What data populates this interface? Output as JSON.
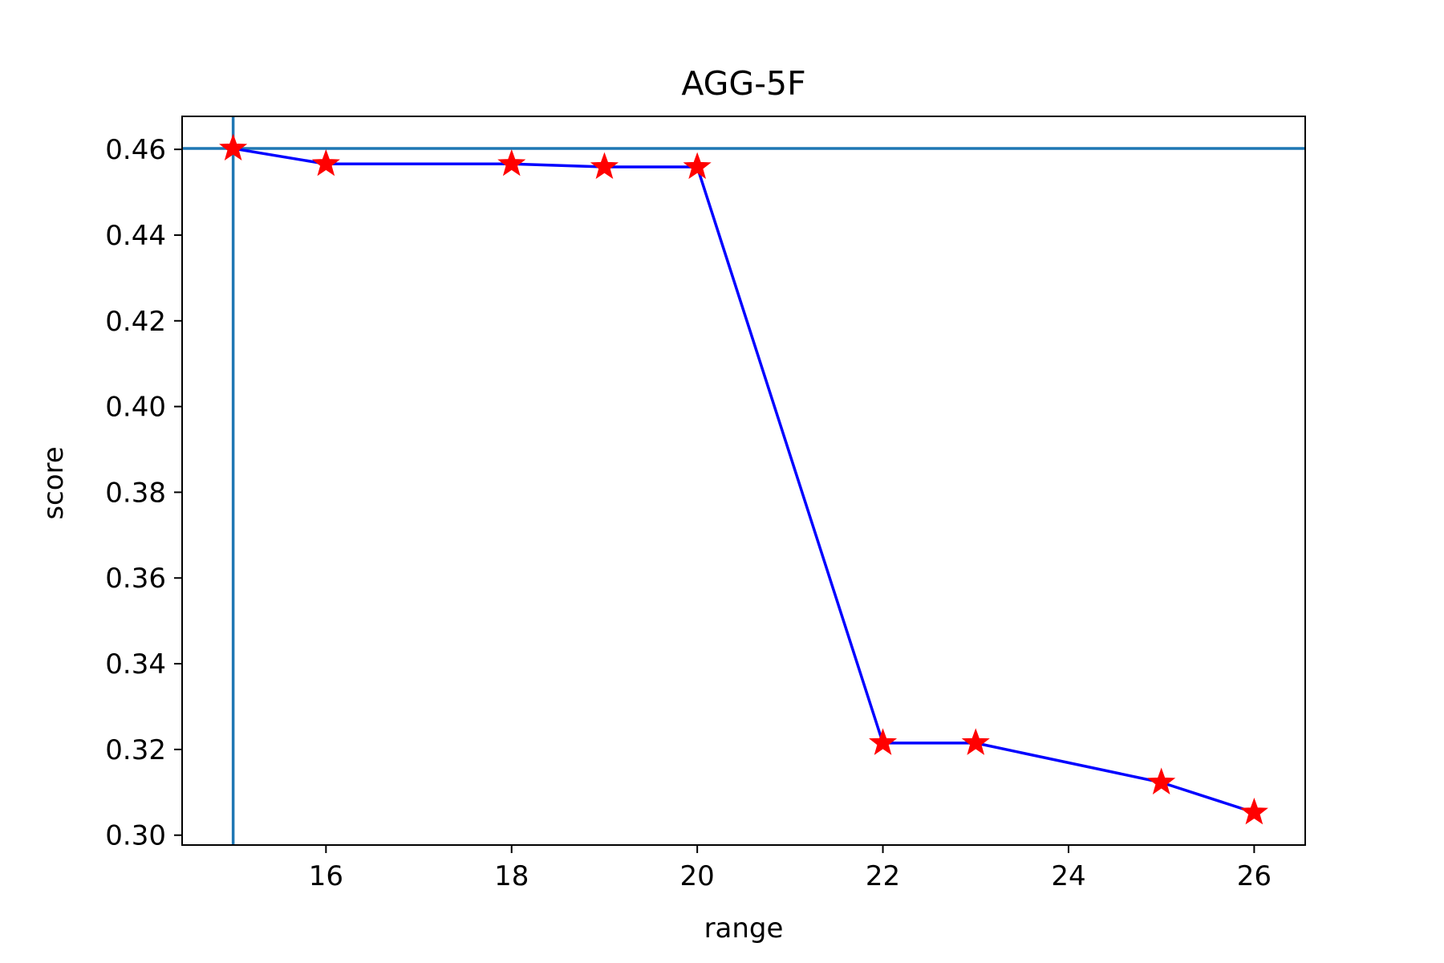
{
  "chart_data": {
    "type": "line",
    "title": "AGG-5F",
    "xlabel": "range",
    "ylabel": "score",
    "xlim": [
      14.45,
      26.55
    ],
    "ylim": [
      0.2977,
      0.4677
    ],
    "xticks": [
      16,
      18,
      20,
      22,
      24,
      26
    ],
    "yticks": [
      0.3,
      0.32,
      0.34,
      0.36,
      0.38,
      0.4,
      0.42,
      0.44,
      0.46
    ],
    "xtick_labels": [
      "16",
      "18",
      "20",
      "22",
      "24",
      "26"
    ],
    "ytick_labels": [
      "0.30",
      "0.32",
      "0.34",
      "0.36",
      "0.38",
      "0.40",
      "0.42",
      "0.44",
      "0.46"
    ],
    "grid": false,
    "legend": "none",
    "series": [
      {
        "x": [
          15,
          16,
          18,
          19,
          20,
          22,
          23,
          25,
          26
        ],
        "y": [
          0.4602,
          0.4566,
          0.4566,
          0.4559,
          0.4559,
          0.3215,
          0.3215,
          0.3123,
          0.3053
        ],
        "line_color": "#0000ff",
        "marker": "star",
        "marker_color": "#ff0000"
      }
    ],
    "reference_lines": {
      "vertical_x": 15,
      "horizontal_y": 0.4602,
      "color": "#1f77b4"
    }
  }
}
